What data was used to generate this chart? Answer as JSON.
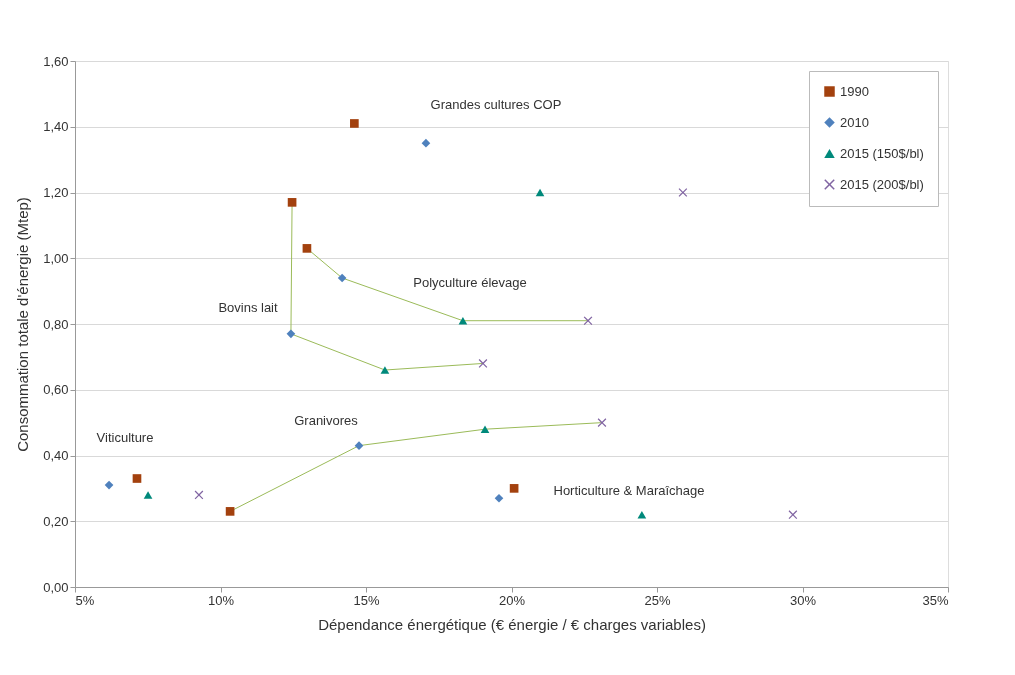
{
  "chart_data": {
    "type": "scatter",
    "xlabel": "Dépendance énergétique (€ énergie / € charges variables)",
    "ylabel": "Consommation totale d'énergie (Mtep)",
    "xlim": [
      5,
      35
    ],
    "xticks": [
      {
        "value": 5,
        "label": "5%"
      },
      {
        "value": 10,
        "label": "10%"
      },
      {
        "value": 15,
        "label": "15%"
      },
      {
        "value": 20,
        "label": "20%"
      },
      {
        "value": 25,
        "label": "25%"
      },
      {
        "value": 30,
        "label": "30%"
      },
      {
        "value": 35,
        "label": "35%"
      }
    ],
    "ylim": [
      0,
      1.6
    ],
    "yticks": [
      {
        "value": 0,
        "label": "0,00"
      },
      {
        "value": 0.2,
        "label": "0,20"
      },
      {
        "value": 0.4,
        "label": "0,40"
      },
      {
        "value": 0.6,
        "label": "0,60"
      },
      {
        "value": 0.8,
        "label": "0,80"
      },
      {
        "value": 1.0,
        "label": "1,00"
      },
      {
        "value": 1.2,
        "label": "1,20"
      },
      {
        "value": 1.4,
        "label": "1,40"
      },
      {
        "value": 1.6,
        "label": "1,60"
      }
    ],
    "grid": "y",
    "legend": "top right",
    "series": [
      {
        "type": "line",
        "color": "#9bbb59",
        "x": [
          12.46,
          12.42,
          15.65,
          19.02
        ],
        "values": [
          1.17,
          0.77,
          0.66,
          0.68
        ]
      },
      {
        "type": "line",
        "color": "#9bbb59",
        "x": [
          12.97,
          14.18,
          18.33,
          22.63
        ],
        "values": [
          1.03,
          0.94,
          0.81,
          0.81
        ]
      },
      {
        "type": "line",
        "color": "#9bbb59",
        "x": [
          10.33,
          14.76,
          19.09,
          23.11
        ],
        "values": [
          0.23,
          0.43,
          0.48,
          0.5
        ]
      },
      {
        "name": "1990",
        "color": "#a3410e",
        "marker": "square",
        "x": [
          14.6,
          12.46,
          12.97,
          10.33,
          7.13,
          20.09
        ],
        "values": [
          1.41,
          1.17,
          1.03,
          0.23,
          0.33,
          0.3
        ]
      },
      {
        "name": "2010",
        "color": "#4f81bd",
        "marker": "diamond",
        "x": [
          17.06,
          14.18,
          12.42,
          14.76,
          6.17,
          19.57
        ],
        "values": [
          1.35,
          0.94,
          0.77,
          0.43,
          0.31,
          0.27
        ]
      },
      {
        "name": "2015 (150$/bl)",
        "color": "#00897b",
        "marker": "triangle",
        "x": [
          20.98,
          18.33,
          15.65,
          19.09,
          7.51,
          24.48
        ],
        "values": [
          1.2,
          0.81,
          0.66,
          0.48,
          0.28,
          0.22
        ]
      },
      {
        "name": "2015 (200$/bl)",
        "color": "#8064a2",
        "marker": "cross",
        "x": [
          25.89,
          22.63,
          19.02,
          23.11,
          9.26,
          29.67
        ],
        "values": [
          1.2,
          0.81,
          0.68,
          0.5,
          0.28,
          0.22
        ]
      }
    ],
    "annotations": [
      "Grandes cultures COP",
      "Polyculture élevage",
      "Bovins lait",
      "Granivores",
      "Viticulture",
      "Horticulture & Maraîchage"
    ]
  }
}
